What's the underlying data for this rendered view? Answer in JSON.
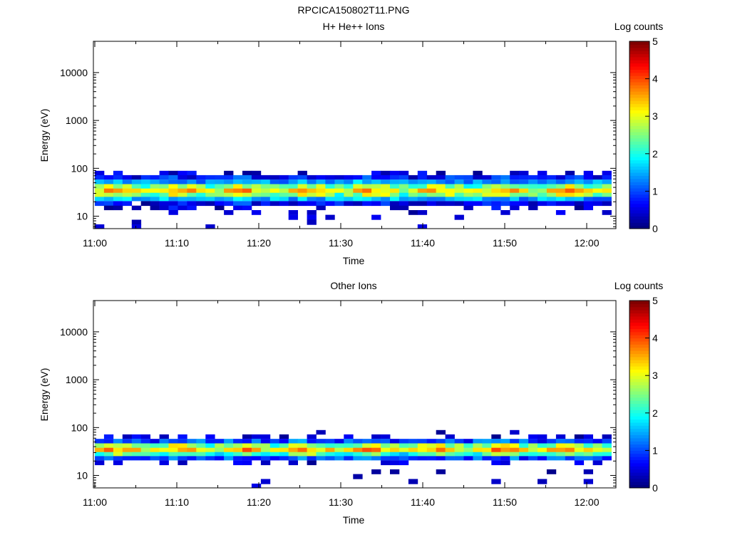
{
  "page_title": "RPCICA150802T11.PNG",
  "colors": {
    "low": "#00007f",
    "mid": "#7fff7f",
    "high": "#7f0000"
  },
  "chart_data": [
    {
      "type": "heatmap",
      "title": "H+ He++ Ions",
      "xlabel": "Time",
      "ylabel": "Energy (eV)",
      "x_ticks": [
        "11:00",
        "11:10",
        "11:20",
        "11:30",
        "11:40",
        "11:50",
        "12:00"
      ],
      "y_ticks": [
        "10",
        "100",
        "1000",
        "10000"
      ],
      "y_scale": "log",
      "ylim": [
        5.5,
        45000
      ],
      "time_range": [
        "11:00",
        "12:03"
      ],
      "colorbar": {
        "label": "Log counts",
        "ticks": [
          "0",
          "1",
          "2",
          "3",
          "4",
          "5"
        ],
        "range": [
          0,
          5
        ]
      },
      "profile": [
        {
          "energy_eV": 80,
          "log_counts": 0.35
        },
        {
          "energy_eV": 65,
          "log_counts": 0.7
        },
        {
          "energy_eV": 52,
          "log_counts": 1.4
        },
        {
          "energy_eV": 42,
          "log_counts": 2.5
        },
        {
          "energy_eV": 34,
          "log_counts": 3.2
        },
        {
          "energy_eV": 28,
          "log_counts": 2.6
        },
        {
          "energy_eV": 23,
          "log_counts": 1.5
        },
        {
          "energy_eV": 18.5,
          "log_counts": 0.6
        },
        {
          "energy_eV": 15,
          "log_counts": 0.3
        },
        {
          "energy_eV": 12,
          "log_counts": 0.2
        },
        {
          "energy_eV": 9.5,
          "log_counts": 0.15
        },
        {
          "energy_eV": 7.5,
          "log_counts": 0.12
        },
        {
          "energy_eV": 6.1,
          "log_counts": 0.12
        }
      ]
    },
    {
      "type": "heatmap",
      "title": "Other Ions",
      "xlabel": "Time",
      "ylabel": "Energy (eV)",
      "x_ticks": [
        "11:00",
        "11:10",
        "11:20",
        "11:30",
        "11:40",
        "11:50",
        "12:00"
      ],
      "y_ticks": [
        "10",
        "100",
        "1000",
        "10000"
      ],
      "y_scale": "log",
      "ylim": [
        5.5,
        45000
      ],
      "time_range": [
        "11:00",
        "12:03"
      ],
      "colorbar": {
        "label": "Log counts",
        "ticks": [
          "0",
          "1",
          "2",
          "3",
          "4",
          "5"
        ],
        "range": [
          0,
          5
        ]
      },
      "profile": [
        {
          "energy_eV": 80,
          "log_counts": 0.06
        },
        {
          "energy_eV": 65,
          "log_counts": 0.3
        },
        {
          "energy_eV": 52,
          "log_counts": 1.0
        },
        {
          "energy_eV": 42,
          "log_counts": 2.6
        },
        {
          "energy_eV": 34,
          "log_counts": 3.3
        },
        {
          "energy_eV": 28,
          "log_counts": 2.2
        },
        {
          "energy_eV": 23,
          "log_counts": 1.0
        },
        {
          "energy_eV": 18.5,
          "log_counts": 0.3
        },
        {
          "energy_eV": 15,
          "log_counts": 0.07
        },
        {
          "energy_eV": 12,
          "log_counts": 0.08
        },
        {
          "energy_eV": 9.5,
          "log_counts": 0.06
        },
        {
          "energy_eV": 7.5,
          "log_counts": 0.05
        },
        {
          "energy_eV": 6.1,
          "log_counts": 0.04
        }
      ]
    }
  ]
}
